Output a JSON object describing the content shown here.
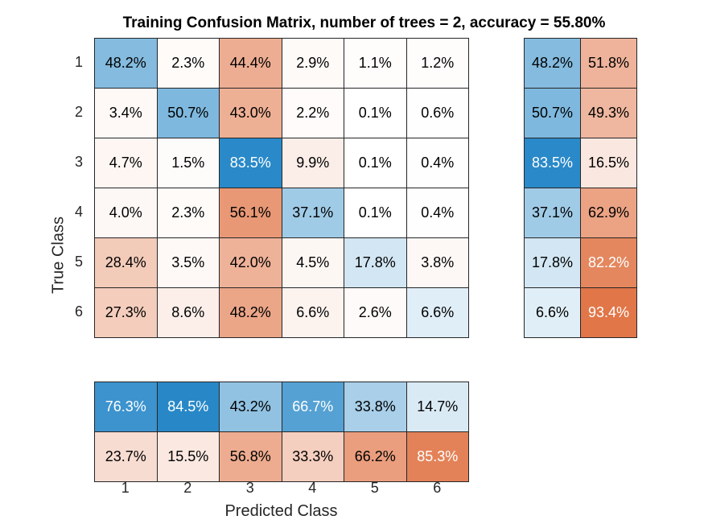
{
  "chart_data": {
    "type": "heatmap",
    "title": "Training Confusion Matrix, number of trees = 2, accuracy = 55.80%",
    "xlabel": "Predicted Class",
    "ylabel": "True Class",
    "classes": [
      "1",
      "2",
      "3",
      "4",
      "5",
      "6"
    ],
    "matrix": [
      [
        48.2,
        2.3,
        44.4,
        2.9,
        1.1,
        1.2
      ],
      [
        3.4,
        50.7,
        43.0,
        2.2,
        0.1,
        0.6
      ],
      [
        4.7,
        1.5,
        83.5,
        9.9,
        0.1,
        0.4
      ],
      [
        4.0,
        2.3,
        56.1,
        37.1,
        0.1,
        0.4
      ],
      [
        28.4,
        3.5,
        42.0,
        4.5,
        17.8,
        3.8
      ],
      [
        27.3,
        8.6,
        48.2,
        6.6,
        2.6,
        6.6
      ]
    ],
    "row_summary": [
      [
        48.2,
        51.8
      ],
      [
        50.7,
        49.3
      ],
      [
        83.5,
        16.5
      ],
      [
        37.1,
        62.9
      ],
      [
        17.8,
        82.2
      ],
      [
        6.6,
        93.4
      ]
    ],
    "column_summary": [
      [
        76.3,
        84.5,
        43.2,
        66.7,
        33.8,
        14.7
      ],
      [
        23.7,
        15.5,
        56.8,
        33.3,
        66.2,
        85.3
      ]
    ],
    "value_suffix": "%",
    "colors": {
      "correct": "#0072bd",
      "incorrect": "#d95319",
      "border": "#262626",
      "text_dark": "#000000",
      "text_light": "#ffffff"
    }
  }
}
